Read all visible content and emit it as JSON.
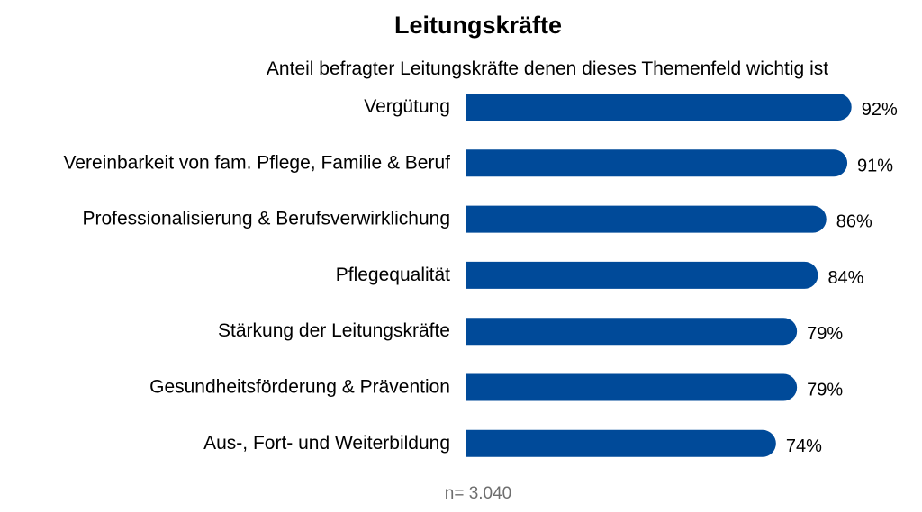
{
  "chart_data": {
    "type": "bar",
    "orientation": "horizontal",
    "title": "Leitungskräfte",
    "subtitle": "Anteil befragter Leitungskräfte denen dieses Themenfeld wichtig ist",
    "categories": [
      "Vergütung",
      "Vereinbarkeit von fam. Pflege, Familie & Beruf",
      "Professionalisierung & Berufsverwirklichung",
      "Pflegequalität",
      "Stärkung der Leitungskräfte",
      "Gesundheitsförderung & Prävention",
      "Aus-, Fort- und Weiterbildung"
    ],
    "values": [
      92,
      91,
      86,
      84,
      79,
      79,
      74
    ],
    "value_labels": [
      "92%",
      "91%",
      "86%",
      "84%",
      "79%",
      "79%",
      "74%"
    ],
    "unit": "%",
    "xlim": [
      0,
      100
    ],
    "grid": false,
    "legend": "none",
    "note": "n= 3.040",
    "colors": {
      "bar": "#004A99",
      "text": "#000000",
      "note": "#6E6E6E"
    }
  }
}
